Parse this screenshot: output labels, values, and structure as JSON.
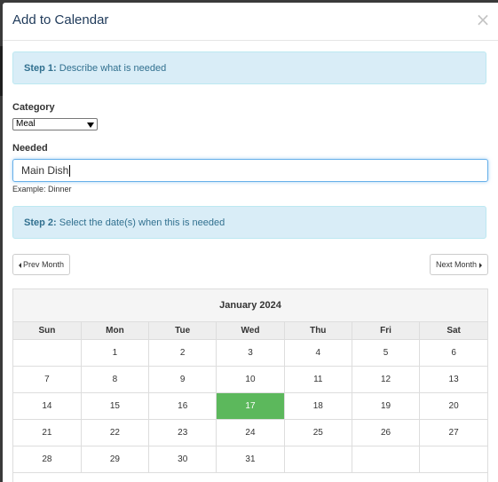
{
  "modal": {
    "title": "Add to Calendar",
    "close_label": "×"
  },
  "step1": {
    "bold": "Step 1:",
    "text": " Describe what is needed"
  },
  "category": {
    "label": "Category",
    "value": "Meal"
  },
  "needed": {
    "label": "Needed",
    "value": "Main Dish",
    "help": "Example: Dinner"
  },
  "step2": {
    "bold": "Step 2:",
    "text": " Select the date(s) when this is needed"
  },
  "nav": {
    "prev_label": "Prev Month",
    "next_label": "Next Month"
  },
  "calendar": {
    "month_label": "January 2024",
    "weekdays": [
      "Sun",
      "Mon",
      "Tue",
      "Wed",
      "Thu",
      "Fri",
      "Sat"
    ],
    "weeks": [
      [
        "",
        "1",
        "2",
        "3",
        "4",
        "5",
        "6"
      ],
      [
        "7",
        "8",
        "9",
        "10",
        "11",
        "12",
        "13"
      ],
      [
        "14",
        "15",
        "16",
        "17",
        "18",
        "19",
        "20"
      ],
      [
        "21",
        "22",
        "23",
        "24",
        "25",
        "26",
        "27"
      ],
      [
        "28",
        "29",
        "30",
        "31",
        "",
        "",
        ""
      ]
    ],
    "selected_day": "17",
    "selected_color": "#5cb85c"
  }
}
